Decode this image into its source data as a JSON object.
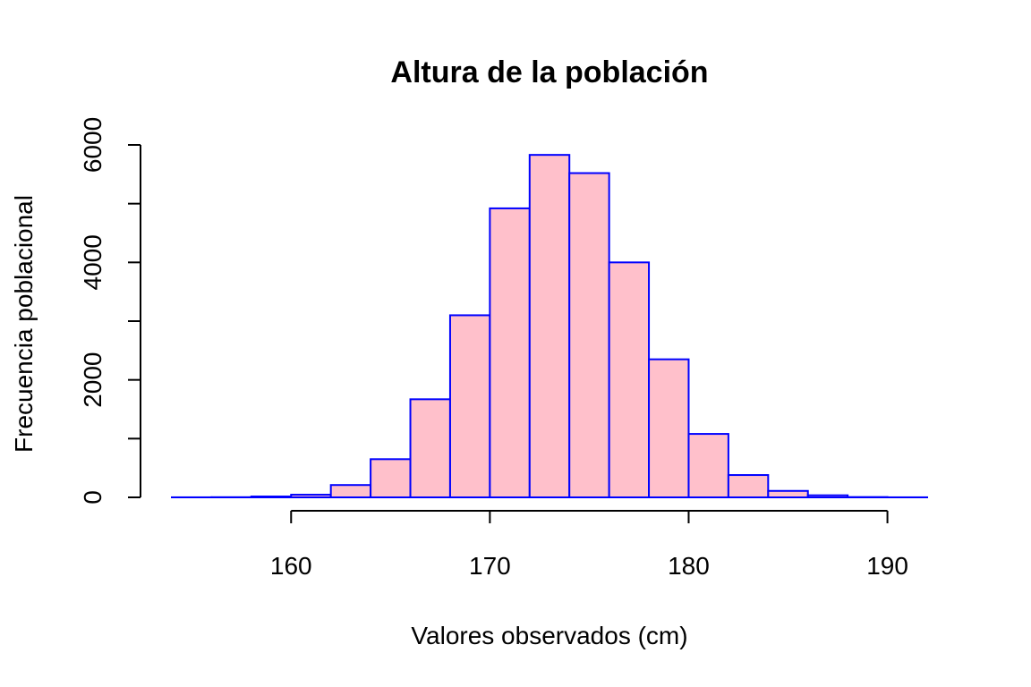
{
  "chart_data": {
    "type": "bar",
    "title": "Altura de la población",
    "xlabel": "Valores observados (cm)",
    "ylabel": "Frecuencia poblacional",
    "bin_edges": [
      154,
      156,
      158,
      160,
      162,
      164,
      166,
      168,
      170,
      172,
      174,
      176,
      178,
      180,
      182,
      184,
      186,
      188,
      190,
      192
    ],
    "values": [
      1,
      3,
      15,
      45,
      210,
      650,
      1670,
      3100,
      4920,
      5830,
      5520,
      4000,
      2350,
      1080,
      380,
      110,
      35,
      5,
      1
    ],
    "xlim": [
      154,
      192
    ],
    "ylim": [
      0,
      6000
    ],
    "x_ticks": [
      {
        "value": 160,
        "label": "160"
      },
      {
        "value": 170,
        "label": "170"
      },
      {
        "value": 180,
        "label": "180"
      },
      {
        "value": 190,
        "label": "190"
      }
    ],
    "y_ticks": [
      {
        "value": 0,
        "label": "0"
      },
      {
        "value": 1000,
        "label": ""
      },
      {
        "value": 2000,
        "label": "2000"
      },
      {
        "value": 3000,
        "label": ""
      },
      {
        "value": 4000,
        "label": "4000"
      },
      {
        "value": 5000,
        "label": ""
      },
      {
        "value": 6000,
        "label": "6000"
      }
    ],
    "grid": false,
    "bar_fill": "#ffc0cb",
    "bar_stroke": "#0000ff"
  }
}
